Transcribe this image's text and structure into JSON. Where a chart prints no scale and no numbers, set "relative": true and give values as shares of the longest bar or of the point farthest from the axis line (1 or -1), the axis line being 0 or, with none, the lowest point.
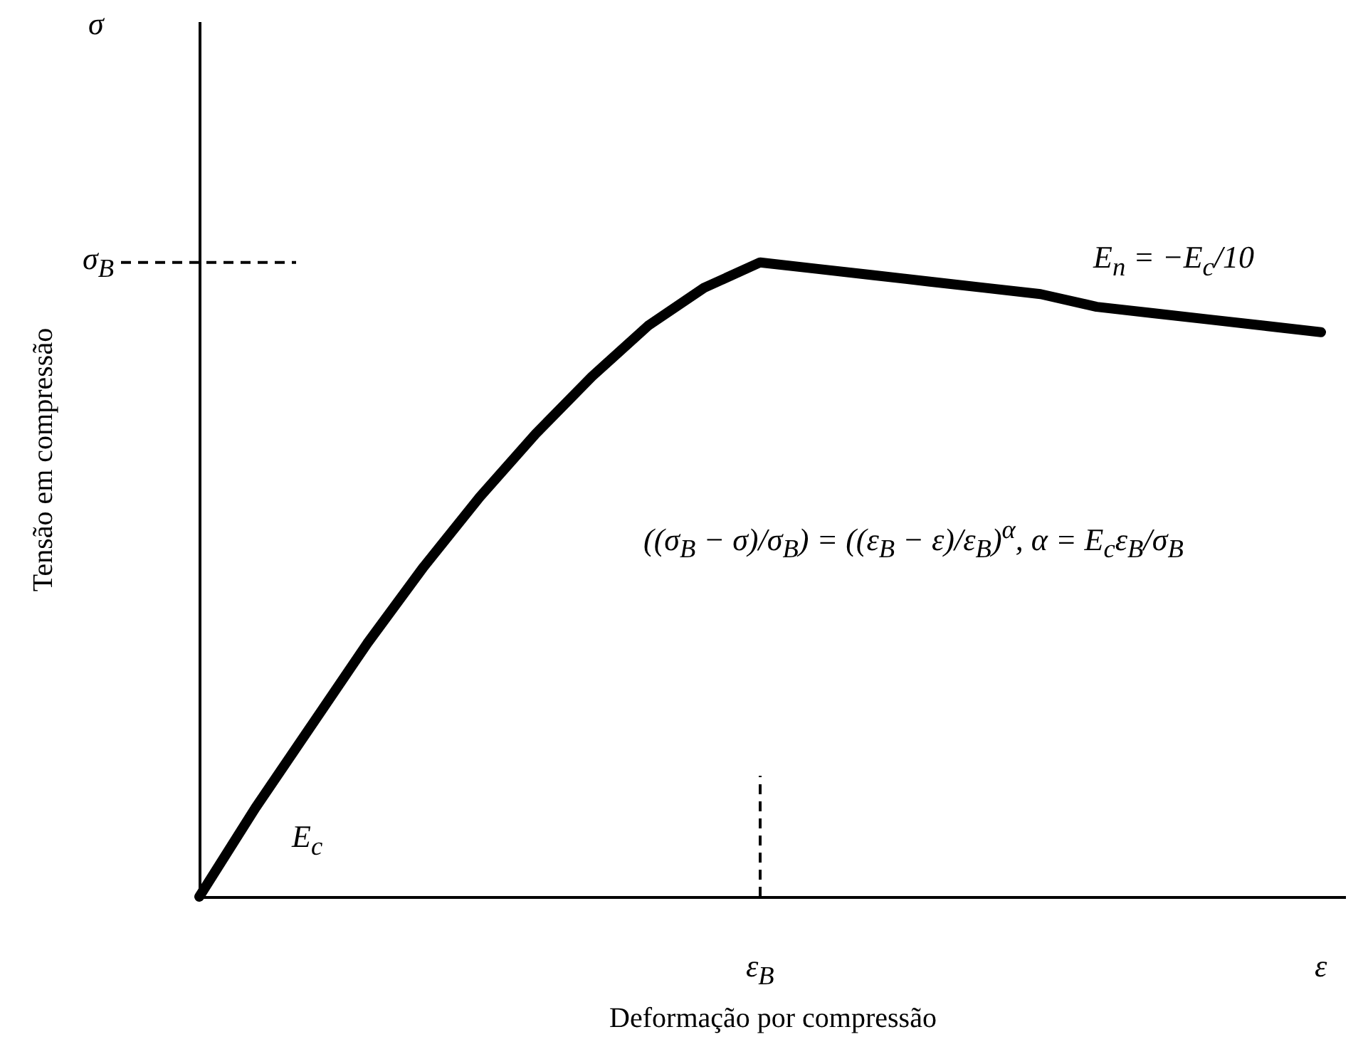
{
  "chart_data": {
    "type": "line",
    "relative": true,
    "color": "#000000",
    "line_style": "solid",
    "marker": "none",
    "grid": false,
    "xlabel": "Deformação por compressão",
    "ylabel": "Tensão em compressão",
    "categories": [
      null,
      null,
      null,
      null,
      null,
      null,
      null,
      null,
      null,
      null,
      "ε$_{B}$",
      null,
      null,
      null,
      null,
      null,
      null,
      null,
      null,
      null,
      "ε"
    ],
    "values": [
      0,
      0.14,
      0.27,
      0.4,
      0.52,
      0.63,
      0.73,
      0.82,
      0.9,
      0.96,
      1,
      0.99,
      0.98,
      0.97,
      0.96,
      0.95,
      0.93,
      0.92,
      0.91,
      0.9,
      0.89
    ],
    "ref_lines": [
      {
        "axis": "y",
        "value": 1,
        "label": "σ$_{B}$",
        "line_style": "dashed"
      },
      {
        "axis": "x",
        "value": "ε$_{B}$",
        "line_style": "dashed"
      }
    ],
    "annotations": [
      "σ",
      "E$_{n}$ = −E$_{c}$/10",
      "((σ$_{B}$ − σ)/σ$_{B}$) = ((ε$_{B}$ − ε)/ε$_{B}$)$^{α}$,  α = E$_{c}$ε$_{B}$/σ$_{B}$",
      "E$_{c}$"
    ]
  }
}
